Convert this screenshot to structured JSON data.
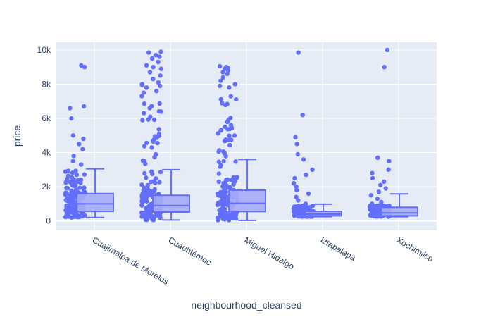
{
  "chart_data": {
    "type": "box",
    "xlabel": "neighbourhood_cleansed",
    "ylabel": "price",
    "ylim": [
      -550,
      10450
    ],
    "yticks": [
      0,
      2000,
      4000,
      6000,
      8000,
      10000
    ],
    "ytick_labels": [
      "0",
      "2k",
      "4k",
      "6k",
      "8k",
      "10k"
    ],
    "grid": true,
    "colors": {
      "plot_bg": "#E5ECF6",
      "grid": "#ffffff",
      "marker": "#636EFA",
      "box_fill": "#A5ACF8",
      "text": "#2a3f5f"
    },
    "categories": [
      "Cuajimalpa de Morelos",
      "Cuauhtémoc",
      "Miguel Hidalgo",
      "Iztapalapa",
      "Xochimilco"
    ],
    "boxes": [
      {
        "min": 200,
        "q1": 560,
        "median": 1000,
        "q3": 1600,
        "max": 3050
      },
      {
        "min": 50,
        "q1": 520,
        "median": 900,
        "q3": 1500,
        "max": 3000
      },
      {
        "min": 30,
        "q1": 550,
        "median": 1030,
        "q3": 1800,
        "max": 3600
      },
      {
        "min": 250,
        "q1": 300,
        "median": 400,
        "q3": 560,
        "max": 980
      },
      {
        "min": 250,
        "q1": 300,
        "median": 470,
        "q3": 800,
        "max": 1580
      }
    ],
    "points": [
      {
        "dense_top": 3000,
        "outliers": [
          9000,
          9100,
          6700,
          6600,
          6000,
          5000,
          4800,
          4500,
          4200,
          3800,
          3500,
          3300
        ]
      },
      {
        "dense_top": 7000,
        "outliers": [
          9900,
          9850,
          9700,
          9600,
          9500,
          9300,
          9100,
          9000,
          8900,
          8700,
          8500,
          8300,
          8100,
          8000,
          7950,
          7900,
          7800,
          7600,
          7500,
          7300
        ]
      },
      {
        "dense_top": 7500,
        "outliers": [
          9050,
          9000,
          8950,
          8900,
          8800,
          8700,
          8600,
          8400,
          8200,
          8000,
          7900,
          7800
        ]
      },
      {
        "dense_top": 900,
        "outliers": [
          9850,
          6200,
          4900,
          4500,
          3900,
          3600,
          3000,
          2700,
          2500,
          2200,
          2000,
          1800,
          1600,
          1400,
          1200,
          1000
        ]
      },
      {
        "dense_top": 900,
        "outliers": [
          10000,
          9000,
          3700,
          3500,
          3000,
          2800,
          2500,
          2300,
          2100,
          1900,
          1700,
          1500,
          1300,
          1100,
          1000
        ]
      }
    ]
  }
}
